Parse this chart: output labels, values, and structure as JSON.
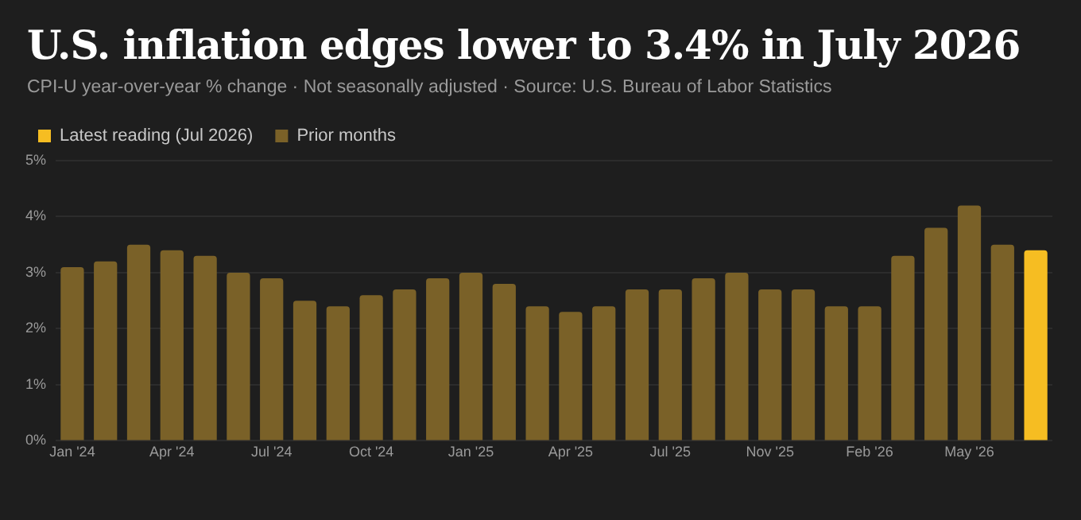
{
  "chart_data": {
    "type": "bar",
    "title": "U.S. inflation edges lower to 3.4% in July 2026",
    "subtitle": "CPI-U year-over-year % change · Not seasonally adjusted · Source: U.S. Bureau of Labor Statistics",
    "categories": [
      "Jan '24",
      null,
      null,
      "Apr '24",
      null,
      null,
      "Jul '24",
      null,
      null,
      "Oct '24",
      null,
      null,
      "Jan '25",
      null,
      null,
      "Apr '25",
      null,
      null,
      "Jul '25",
      null,
      null,
      "Nov '25",
      null,
      null,
      "Feb '26",
      null,
      null,
      "May '26",
      null,
      null
    ],
    "series": [
      {
        "name": "Latest reading (Jul 2026)",
        "color": "#f6bd22",
        "values": [
          null,
          null,
          null,
          null,
          null,
          null,
          null,
          null,
          null,
          null,
          null,
          null,
          null,
          null,
          null,
          null,
          null,
          null,
          null,
          null,
          null,
          null,
          null,
          null,
          null,
          null,
          null,
          null,
          null,
          3.4
        ]
      },
      {
        "name": "Prior months",
        "color": "#7a6128",
        "values": [
          3.1,
          3.2,
          3.5,
          3.4,
          3.3,
          3.0,
          2.9,
          2.5,
          2.4,
          2.6,
          2.7,
          2.9,
          3.0,
          2.8,
          2.4,
          2.3,
          2.4,
          2.7,
          2.7,
          2.9,
          3.0,
          2.7,
          2.7,
          2.4,
          2.4,
          3.3,
          3.8,
          4.2,
          3.5,
          null
        ]
      }
    ],
    "stacked": true,
    "ylim": [
      0,
      5
    ],
    "yticks": [
      {
        "value": 0,
        "label": "0%"
      },
      {
        "value": 1,
        "label": "1%"
      },
      {
        "value": 2,
        "label": "2%"
      },
      {
        "value": 3,
        "label": "3%"
      },
      {
        "value": 4,
        "label": "4%"
      },
      {
        "value": 5,
        "label": "5%"
      }
    ],
    "grid": "y",
    "legend": "top left"
  }
}
